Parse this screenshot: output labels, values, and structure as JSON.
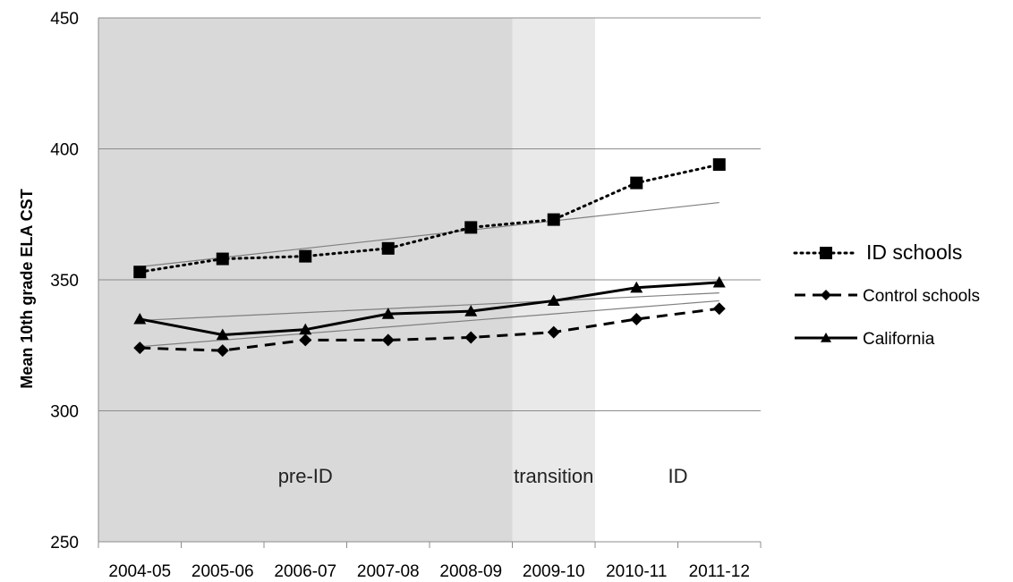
{
  "chart_data": {
    "type": "line",
    "title": "",
    "xlabel": "",
    "ylabel": "Mean 10th grade ELA CST",
    "categories": [
      "2004-05",
      "2005-06",
      "2006-07",
      "2007-08",
      "2008-09",
      "2009-10",
      "2010-11",
      "2011-12"
    ],
    "ylim": [
      250,
      450
    ],
    "yticks": [
      250,
      300,
      350,
      400,
      450
    ],
    "grid": "horizontal",
    "legend_position": "right",
    "regions": [
      {
        "label": "pre-ID",
        "from": "2004-05",
        "to": "2008-09",
        "color": "#d9d9d9"
      },
      {
        "label": "transition",
        "from": "2009-10",
        "to": "2009-10",
        "color": "#e9e9e9"
      },
      {
        "label": "ID",
        "from": "2010-11",
        "to": "2011-12",
        "color": "#ffffff"
      }
    ],
    "series": [
      {
        "name": "ID schools",
        "style": "dotted",
        "marker": "square",
        "color": "#000000",
        "values": [
          353,
          358,
          359,
          362,
          370,
          373,
          387,
          394
        ]
      },
      {
        "name": "Control schools",
        "style": "dashed",
        "marker": "diamond",
        "color": "#000000",
        "values": [
          324,
          323,
          327,
          327,
          328,
          330,
          335,
          339
        ]
      },
      {
        "name": "California",
        "style": "solid",
        "marker": "triangle",
        "color": "#000000",
        "values": [
          335,
          329,
          331,
          337,
          338,
          342,
          347,
          349
        ]
      }
    ],
    "trendlines": [
      {
        "series": "ID schools",
        "values": [
          355,
          358.5,
          362,
          365.5,
          369,
          372.5,
          376,
          379.5
        ]
      },
      {
        "series": "Control schools",
        "values": [
          324.5,
          327,
          329.5,
          332,
          334.5,
          337,
          339.5,
          342
        ]
      },
      {
        "series": "California",
        "values": [
          334.5,
          336,
          337.5,
          339,
          340.5,
          342,
          343.5,
          345
        ]
      }
    ]
  }
}
